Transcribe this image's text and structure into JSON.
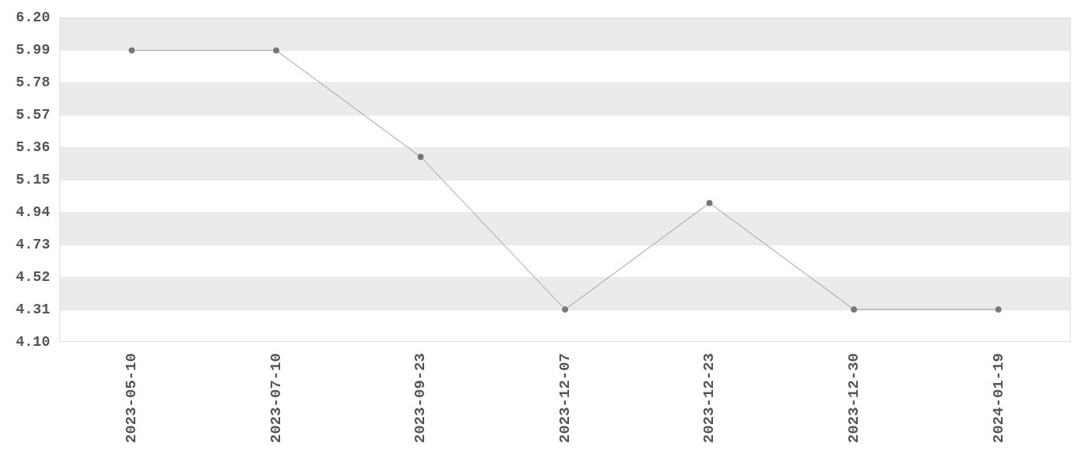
{
  "chart_data": {
    "type": "line",
    "categories": [
      "2023-05-10",
      "2023-07-10",
      "2023-09-23",
      "2023-12-07",
      "2023-12-23",
      "2023-12-30",
      "2024-01-19"
    ],
    "series": [
      {
        "color": "#777777",
        "values": [
          5.99,
          5.99,
          5.3,
          4.31,
          5.0,
          4.31,
          4.31
        ]
      }
    ],
    "ylim": [
      4.1,
      6.2
    ],
    "yticks": [
      {
        "value": 4.1,
        "label": "4.10"
      },
      4.31,
      4.52,
      4.73,
      4.94,
      5.15,
      5.36,
      5.57,
      5.78,
      5.99,
      {
        "value": 6.2,
        "label": "6.20"
      }
    ],
    "grid": "y",
    "legend": false,
    "marker": "circle",
    "line_style": "solid"
  }
}
